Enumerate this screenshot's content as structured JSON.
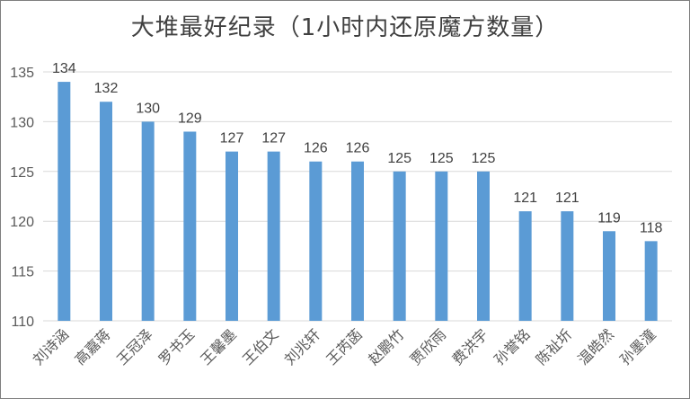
{
  "chart_data": {
    "type": "bar",
    "title": "大堆最好纪录（1小时内还原魔方数量）",
    "xlabel": "",
    "ylabel": "",
    "ylim": [
      110,
      135
    ],
    "yticks": [
      110,
      115,
      120,
      125,
      130,
      135
    ],
    "grid": true,
    "legend": "none",
    "bar_color": "#5b9bd5",
    "gridline_color": "#d9d9d9",
    "categories": [
      "刘诗涵",
      "高嘉蒋",
      "王冠泽",
      "罗书玉",
      "王馨墨",
      "王伯文",
      "刘兆轩",
      "王芮菡",
      "赵鹏竹",
      "贾欣雨",
      "费洪宇",
      "孙誉铭",
      "陈祉圻",
      "温皓然",
      "孙墨潼"
    ],
    "values": [
      134,
      132,
      130,
      129,
      127,
      127,
      126,
      126,
      125,
      125,
      125,
      121,
      121,
      119,
      118
    ]
  }
}
